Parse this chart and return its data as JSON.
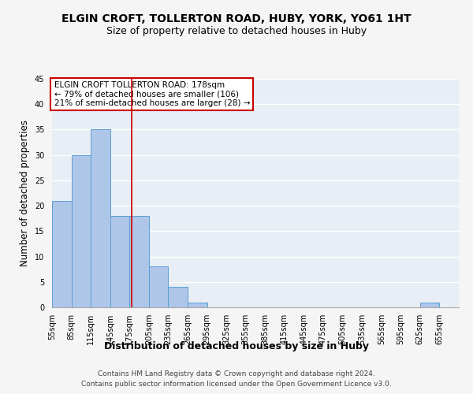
{
  "title": "ELGIN CROFT, TOLLERTON ROAD, HUBY, YORK, YO61 1HT",
  "subtitle": "Size of property relative to detached houses in Huby",
  "xlabel": "Distribution of detached houses by size in Huby",
  "ylabel": "Number of detached properties",
  "bins": [
    "55sqm",
    "85sqm",
    "115sqm",
    "145sqm",
    "175sqm",
    "205sqm",
    "235sqm",
    "265sqm",
    "295sqm",
    "325sqm",
    "355sqm",
    "385sqm",
    "415sqm",
    "445sqm",
    "475sqm",
    "505sqm",
    "535sqm",
    "565sqm",
    "595sqm",
    "625sqm",
    "655sqm"
  ],
  "bin_edges": [
    55,
    85,
    115,
    145,
    175,
    205,
    235,
    265,
    295,
    325,
    355,
    385,
    415,
    445,
    475,
    505,
    535,
    565,
    595,
    625,
    655
  ],
  "counts": [
    21,
    30,
    35,
    18,
    18,
    8,
    4,
    1,
    0,
    0,
    0,
    0,
    0,
    0,
    0,
    0,
    0,
    0,
    0,
    1,
    0
  ],
  "bar_color": "#aec6e8",
  "bar_edge_color": "#5a9fd4",
  "vline_x": 178,
  "vline_color": "#cc0000",
  "ylim": [
    0,
    45
  ],
  "yticks": [
    0,
    5,
    10,
    15,
    20,
    25,
    30,
    35,
    40,
    45
  ],
  "annotation_title": "ELGIN CROFT TOLLERTON ROAD: 178sqm",
  "annotation_line1": "← 79% of detached houses are smaller (106)",
  "annotation_line2": "21% of semi-detached houses are larger (28) →",
  "annotation_box_color": "#ffffff",
  "annotation_box_edge": "#cc0000",
  "footer1": "Contains HM Land Registry data © Crown copyright and database right 2024.",
  "footer2": "Contains public sector information licensed under the Open Government Licence v3.0.",
  "bg_color": "#e8eef5",
  "grid_color": "#ffffff",
  "title_fontsize": 10,
  "subtitle_fontsize": 9,
  "axis_label_fontsize": 8.5,
  "tick_fontsize": 7,
  "annotation_fontsize": 7.5,
  "footer_fontsize": 6.5
}
